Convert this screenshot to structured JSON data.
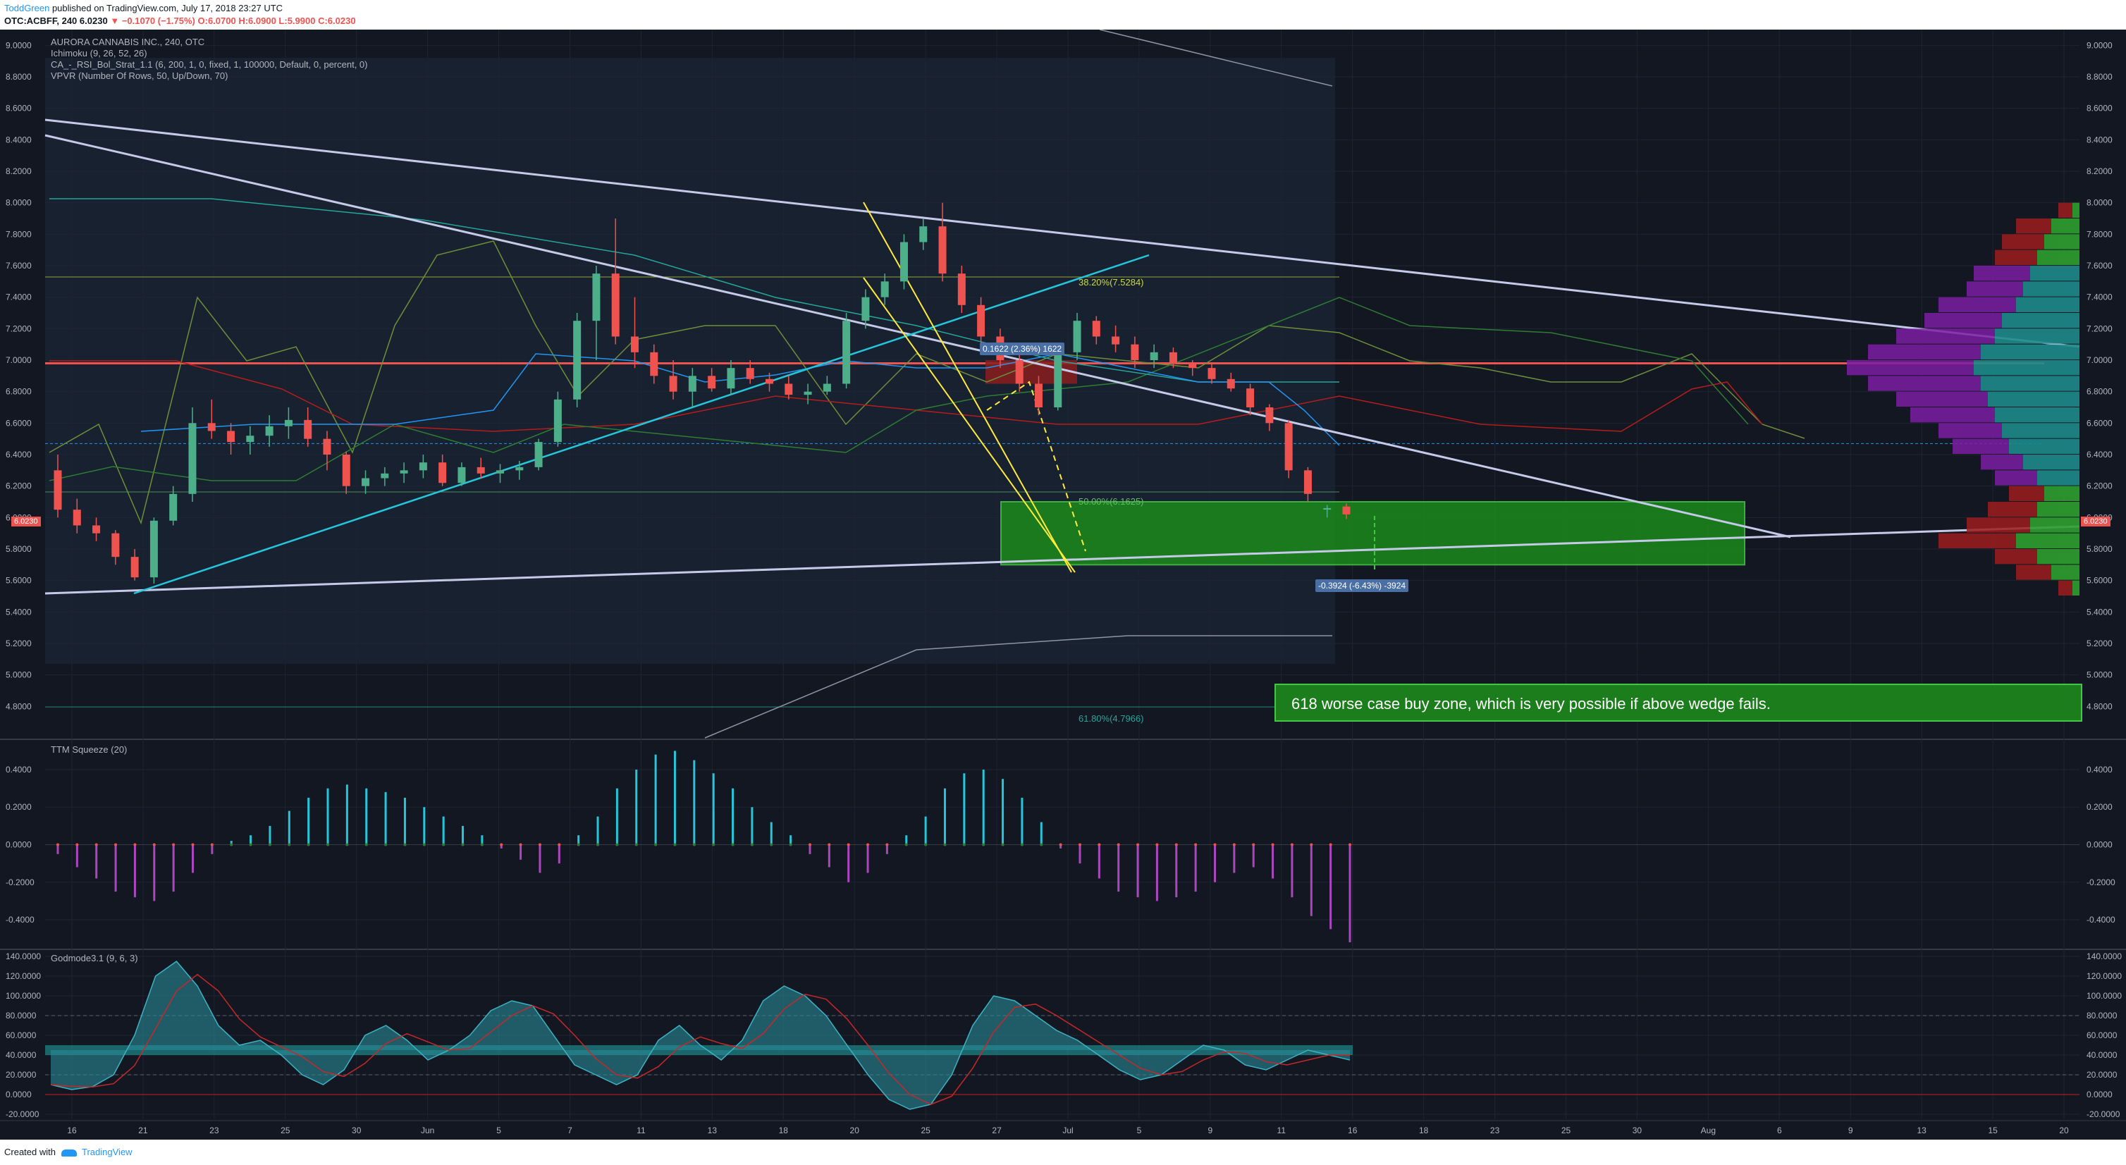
{
  "header": {
    "author": "ToddGreen",
    "published": " published on TradingView.com, July 17, 2018 23:27 UTC",
    "symbol": "OTC:ACBFF, 240",
    "price": "6.0230",
    "change_arrow": "▼",
    "change": "−0.1070 (−1.75%)",
    "ohlc": "O:6.0700 H:6.0900 L:5.9900 C:6.0230"
  },
  "legend": {
    "title": "AURORA CANNABIS INC., 240, OTC",
    "ichimoku": "Ichimoku (9, 26, 52, 26)",
    "strategy": "CA_-_RSI_Bol_Strat_1.1 (6, 200, 1, 0, fixed, 1, 100000, Default, 0, percent, 0)",
    "vpvr": "VPVR (Number Of Rows, 50, Up/Down, 70)",
    "ttm": "TTM Squeeze (20)",
    "godmode": "Godmode3.1 (9, 6, 3)"
  },
  "annotations": {
    "buy_zone": "618 worse case buy zone, which is very possible if above wedge fails.",
    "measure_up": "0.1622 (2.36%) 1622",
    "measure_down": "-0.3924 (-6.43%) -3924",
    "fib_382": "38.20%(7.5284)",
    "fib_50": "50.00%(6.1625)",
    "fib_618": "61.80%(4.7966)",
    "last_price": "6.0230"
  },
  "footer": {
    "created": "Created with",
    "brand": "TradingView"
  },
  "colors": {
    "bg": "#131722",
    "up": "#4caf8a",
    "down": "#ef5350",
    "wedge": "#c5cae9",
    "trend": "#26c6da",
    "zone": "#1b8a1b"
  },
  "chart_data": [
    {
      "type": "candlestick",
      "title": "AURORA CANNABIS INC., 240, OTC",
      "ylim": [
        4.6,
        9.1
      ],
      "y_ticks": [
        "9.0000",
        "8.8000",
        "8.6000",
        "8.4000",
        "8.2000",
        "8.0000",
        "7.8000",
        "7.6000",
        "7.4000",
        "7.2000",
        "7.0000",
        "6.8000",
        "6.6000",
        "6.4000",
        "6.2000",
        "6.0000",
        "5.8000",
        "5.6000",
        "5.4000",
        "5.2000",
        "5.0000",
        "4.8000"
      ],
      "x_ticks": [
        "16",
        "21",
        "23",
        "25",
        "30",
        "Jun",
        "5",
        "7",
        "11",
        "13",
        "18",
        "20",
        "25",
        "27",
        "Jul",
        "5",
        "9",
        "11",
        "16",
        "18",
        "23",
        "25",
        "30",
        "Aug",
        "6",
        "9",
        "13",
        "15",
        "20"
      ],
      "ohlc": [
        [
          6.3,
          6.4,
          6.0,
          6.05
        ],
        [
          6.05,
          6.12,
          5.9,
          5.95
        ],
        [
          5.95,
          6.0,
          5.85,
          5.9
        ],
        [
          5.9,
          5.92,
          5.7,
          5.75
        ],
        [
          5.75,
          5.8,
          5.6,
          5.62
        ],
        [
          5.62,
          6.0,
          5.58,
          5.98
        ],
        [
          5.98,
          6.2,
          5.95,
          6.15
        ],
        [
          6.15,
          6.7,
          6.1,
          6.6
        ],
        [
          6.6,
          6.75,
          6.5,
          6.55
        ],
        [
          6.55,
          6.6,
          6.4,
          6.48
        ],
        [
          6.48,
          6.58,
          6.4,
          6.52
        ],
        [
          6.52,
          6.65,
          6.45,
          6.58
        ],
        [
          6.58,
          6.7,
          6.5,
          6.62
        ],
        [
          6.62,
          6.7,
          6.45,
          6.5
        ],
        [
          6.5,
          6.55,
          6.3,
          6.4
        ],
        [
          6.4,
          6.42,
          6.15,
          6.2
        ],
        [
          6.2,
          6.3,
          6.15,
          6.25
        ],
        [
          6.25,
          6.32,
          6.2,
          6.28
        ],
        [
          6.28,
          6.35,
          6.22,
          6.3
        ],
        [
          6.3,
          6.4,
          6.25,
          6.35
        ],
        [
          6.35,
          6.4,
          6.2,
          6.22
        ],
        [
          6.22,
          6.35,
          6.2,
          6.32
        ],
        [
          6.32,
          6.38,
          6.25,
          6.28
        ],
        [
          6.28,
          6.34,
          6.22,
          6.3
        ],
        [
          6.3,
          6.36,
          6.24,
          6.32
        ],
        [
          6.32,
          6.5,
          6.3,
          6.48
        ],
        [
          6.48,
          6.8,
          6.45,
          6.75
        ],
        [
          6.75,
          7.3,
          6.7,
          7.25
        ],
        [
          7.25,
          7.6,
          7.0,
          7.55
        ],
        [
          7.55,
          7.9,
          7.1,
          7.15
        ],
        [
          7.15,
          7.4,
          6.95,
          7.05
        ],
        [
          7.05,
          7.1,
          6.85,
          6.9
        ],
        [
          6.9,
          7.0,
          6.75,
          6.8
        ],
        [
          6.8,
          6.95,
          6.7,
          6.9
        ],
        [
          6.9,
          6.95,
          6.8,
          6.82
        ],
        [
          6.82,
          7.0,
          6.78,
          6.95
        ],
        [
          6.95,
          7.0,
          6.85,
          6.88
        ],
        [
          6.88,
          6.92,
          6.8,
          6.85
        ],
        [
          6.85,
          6.9,
          6.75,
          6.78
        ],
        [
          6.78,
          6.85,
          6.72,
          6.8
        ],
        [
          6.8,
          6.9,
          6.78,
          6.85
        ],
        [
          6.85,
          7.3,
          6.82,
          7.25
        ],
        [
          7.25,
          7.45,
          7.2,
          7.4
        ],
        [
          7.4,
          7.55,
          7.35,
          7.5
        ],
        [
          7.5,
          7.8,
          7.45,
          7.75
        ],
        [
          7.75,
          7.9,
          7.7,
          7.85
        ],
        [
          7.85,
          8.0,
          7.5,
          7.55
        ],
        [
          7.55,
          7.6,
          7.3,
          7.35
        ],
        [
          7.35,
          7.4,
          7.1,
          7.15
        ],
        [
          7.15,
          7.2,
          6.95,
          7.0
        ],
        [
          7.0,
          7.05,
          6.8,
          6.85
        ],
        [
          6.85,
          6.9,
          6.65,
          6.7
        ],
        [
          6.7,
          7.1,
          6.68,
          7.05
        ],
        [
          7.05,
          7.3,
          7.0,
          7.25
        ],
        [
          7.25,
          7.28,
          7.1,
          7.15
        ],
        [
          7.15,
          7.22,
          7.05,
          7.1
        ],
        [
          7.1,
          7.15,
          6.95,
          7.0
        ],
        [
          7.0,
          7.1,
          6.95,
          7.05
        ],
        [
          7.05,
          7.08,
          6.95,
          6.98
        ],
        [
          6.98,
          7.0,
          6.9,
          6.95
        ],
        [
          6.95,
          6.98,
          6.85,
          6.88
        ],
        [
          6.88,
          6.92,
          6.8,
          6.82
        ],
        [
          6.82,
          6.85,
          6.65,
          6.7
        ],
        [
          6.7,
          6.72,
          6.55,
          6.6
        ],
        [
          6.6,
          6.62,
          6.25,
          6.3
        ],
        [
          6.3,
          6.32,
          6.1,
          6.15
        ],
        [
          6.05,
          6.08,
          6.0,
          6.06
        ],
        [
          6.07,
          6.09,
          5.99,
          6.02
        ]
      ],
      "levels": [
        {
          "label": "38.20%(7.5284)",
          "value": 7.5284
        },
        {
          "label": "50.00%(6.1625)",
          "value": 6.1625
        },
        {
          "label": "61.80%(4.7966)",
          "value": 4.7966
        }
      ]
    },
    {
      "type": "bar",
      "title": "TTM Squeeze (20)",
      "ylim": [
        -0.55,
        0.55
      ],
      "y_ticks": [
        "0.4000",
        "0.2000",
        "0.0000",
        "-0.2000",
        "-0.4000"
      ],
      "values": [
        -0.05,
        -0.12,
        -0.18,
        -0.25,
        -0.28,
        -0.3,
        -0.25,
        -0.15,
        -0.05,
        0.02,
        0.05,
        0.1,
        0.18,
        0.25,
        0.3,
        0.32,
        0.3,
        0.28,
        0.25,
        0.2,
        0.15,
        0.1,
        0.05,
        -0.02,
        -0.08,
        -0.15,
        -0.1,
        0.05,
        0.15,
        0.3,
        0.4,
        0.48,
        0.5,
        0.45,
        0.38,
        0.3,
        0.2,
        0.12,
        0.05,
        -0.05,
        -0.12,
        -0.2,
        -0.15,
        -0.05,
        0.05,
        0.15,
        0.3,
        0.38,
        0.4,
        0.35,
        0.25,
        0.12,
        -0.02,
        -0.1,
        -0.18,
        -0.25,
        -0.28,
        -0.3,
        -0.28,
        -0.25,
        -0.2,
        -0.15,
        -0.12,
        -0.18,
        -0.28,
        -0.38,
        -0.45,
        -0.52
      ]
    },
    {
      "type": "area",
      "title": "Godmode3.1 (9, 6, 3)",
      "ylim": [
        -25,
        145
      ],
      "y_ticks": [
        "140.0000",
        "120.0000",
        "100.0000",
        "80.0000",
        "60.0000",
        "40.0000",
        "20.0000",
        "0.0000",
        "-20.0000"
      ],
      "values": [
        10,
        5,
        8,
        20,
        60,
        120,
        135,
        110,
        70,
        50,
        55,
        40,
        20,
        10,
        25,
        60,
        70,
        55,
        35,
        45,
        60,
        85,
        95,
        90,
        60,
        30,
        20,
        10,
        20,
        55,
        70,
        50,
        35,
        55,
        95,
        110,
        100,
        80,
        50,
        20,
        -5,
        -15,
        -10,
        20,
        70,
        100,
        95,
        80,
        65,
        55,
        40,
        25,
        15,
        20,
        35,
        50,
        45,
        30,
        25,
        35,
        45,
        40,
        35
      ]
    }
  ]
}
